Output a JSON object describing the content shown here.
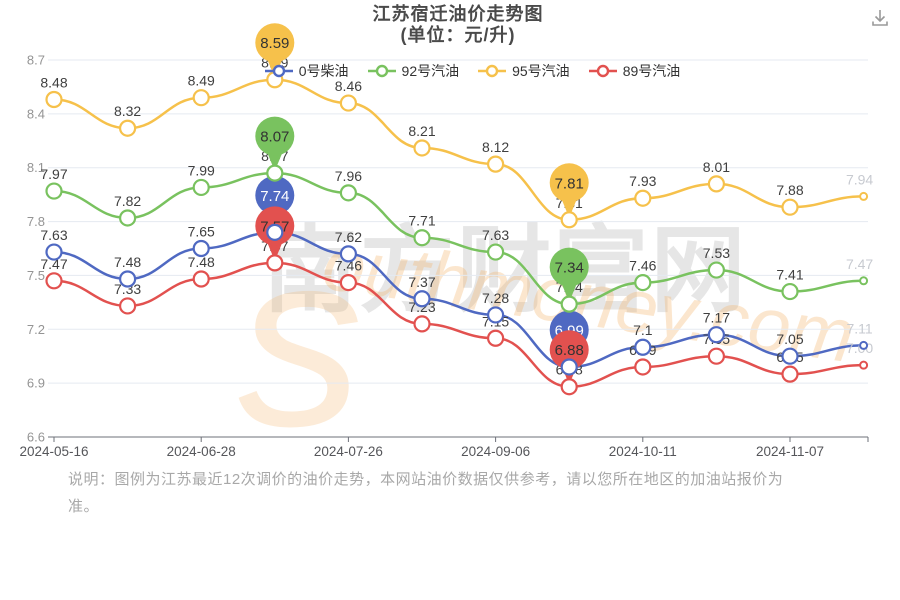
{
  "header": {
    "title_line1": "江苏宿迁油价走势图",
    "title_line2": "(单位：元/升)"
  },
  "legend": [
    {
      "label": "0号柴油",
      "color": "#4f69c2"
    },
    {
      "label": "92号汽油",
      "color": "#79c25f"
    },
    {
      "label": "95号汽油",
      "color": "#f6c14b"
    },
    {
      "label": "89号汽油",
      "color": "#e2514f"
    }
  ],
  "chart_data": {
    "type": "line",
    "title": "江苏宿迁油价走势图 (单位：元/升)",
    "ylabel": "元/升",
    "ylim": [
      6.6,
      8.7
    ],
    "y_ticks": [
      "8.7",
      "8.4",
      "8.1",
      "7.8",
      "7.5",
      "7.2",
      "6.9",
      "6.6"
    ],
    "x_labels": [
      "2024-05-16",
      "2024-06-28",
      "2024-07-26",
      "2024-09-06",
      "2024-10-11",
      "2024-11-07"
    ],
    "x_label_point_indexes": [
      0,
      2,
      4,
      6,
      8,
      10
    ],
    "grid": true,
    "legend_position": "top",
    "draw_order": [
      2,
      1,
      0,
      3
    ],
    "last_label_color": "#c7cad0",
    "value_label_color": "#3f3f3f",
    "series": [
      {
        "name": "0号柴油",
        "color": "#4f69c2",
        "pin_text_color": "#ffffff",
        "values": [
          "7.63",
          "7.48",
          "7.65",
          "7.74",
          "7.62",
          "7.37",
          "7.28",
          "6.99",
          "7.1",
          "7.17",
          "7.05",
          "7.11"
        ],
        "pin_indexes": [
          3,
          7
        ]
      },
      {
        "name": "92号汽油",
        "color": "#79c25f",
        "pin_text_color": "#333333",
        "values": [
          "7.97",
          "7.82",
          "7.99",
          "8.07",
          "7.96",
          "7.71",
          "7.63",
          "7.34",
          "7.46",
          "7.53",
          "7.41",
          "7.47"
        ],
        "pin_indexes": [
          3,
          7
        ]
      },
      {
        "name": "95号汽油",
        "color": "#f6c14b",
        "pin_text_color": "#333333",
        "values": [
          "8.48",
          "8.32",
          "8.49",
          "8.59",
          "8.46",
          "8.21",
          "8.12",
          "7.81",
          "7.93",
          "8.01",
          "7.88",
          "7.94"
        ],
        "pin_indexes": [
          3,
          7
        ]
      },
      {
        "name": "89号汽油",
        "color": "#e2514f",
        "pin_text_color": "#333333",
        "values": [
          "7.47",
          "7.33",
          "7.48",
          "7.57",
          "7.46",
          "7.23",
          "7.15",
          "6.88",
          "6.99",
          "7.05",
          "6.95",
          "7.00"
        ],
        "pin_indexes": [
          3,
          7
        ]
      }
    ]
  },
  "watermark": {
    "cn": "南方财富网",
    "en": "outhmoney.com",
    "en_big_letter": "s",
    "cn_color": "#d2d2d2",
    "en_color": "#f5b469"
  },
  "footer": {
    "line1": "说明：图例为江苏最近12次调价的油价走势，本网站油价数据仅供参考，请以您所在地区的加油站报价为",
    "line2": "准。"
  }
}
